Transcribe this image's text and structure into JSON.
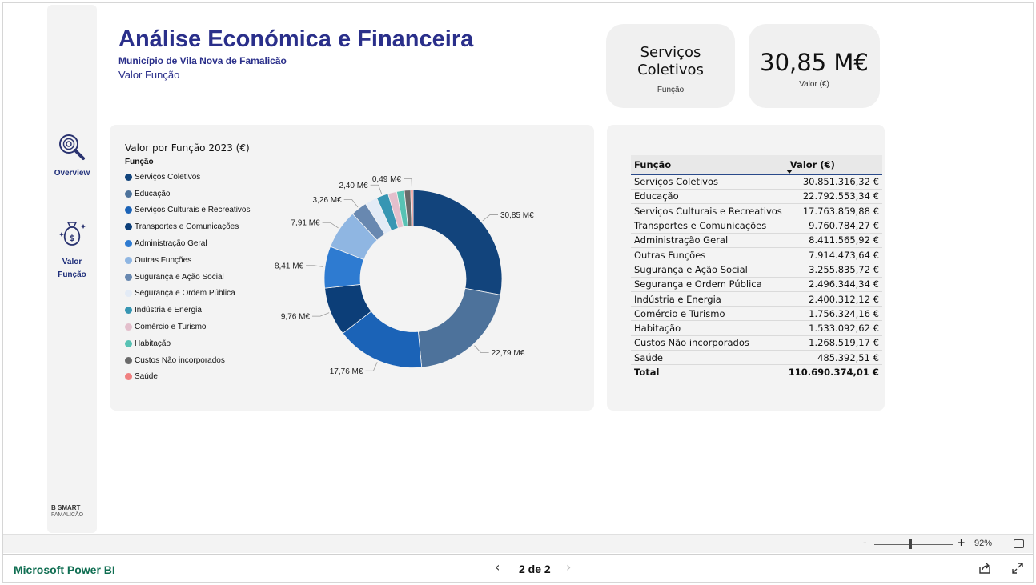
{
  "header": {
    "title": "Análise Económica e Financeira",
    "subtitle": "Município de Vila Nova de Famalicão",
    "page_name": "Valor Função"
  },
  "nav": {
    "items": [
      {
        "label": "Overview",
        "icon": "search-analytics-icon"
      },
      {
        "label_line1": "Valor",
        "label_line2": "Função",
        "icon": "money-bag-icon"
      }
    ],
    "logo_text": "B SMART",
    "logo_sub": "FAMALICÃO"
  },
  "cards": {
    "function": {
      "line1": "Serviços",
      "line2": "Coletivos",
      "caption": "Função"
    },
    "value": {
      "value": "30,85 M€",
      "caption": "Valor (€)"
    }
  },
  "chart_panel": {
    "title": "Valor por Função 2023 (€)",
    "legend_title": "Função"
  },
  "chart_data": {
    "type": "donut",
    "title": "Valor por Função 2023 (€)",
    "legend_title": "Função",
    "legend_position": "left",
    "categories": [
      "Serviços Coletivos",
      "Educação",
      "Serviços Culturais e Recreativos",
      "Transportes e Comunicações",
      "Administração Geral",
      "Outras Funções",
      "Sugurança e Ação Social",
      "Segurança e Ordem Pública",
      "Indústria e Energia",
      "Comércio e Turismo",
      "Habitação",
      "Custos Não incorporados",
      "Saúde"
    ],
    "values": [
      30851316.32,
      22792553.34,
      17763859.88,
      9760784.27,
      8411565.92,
      7914473.64,
      3255835.72,
      2496344.34,
      2400312.12,
      1756324.16,
      1533092.62,
      1268519.17,
      485392.51
    ],
    "colors": [
      "#12447c",
      "#4d729b",
      "#1b63b7",
      "#0c3e78",
      "#2e7bd1",
      "#8fb6e2",
      "#6888b0",
      "#e3ebf6",
      "#3796b3",
      "#e3bfcc",
      "#58c2b4",
      "#6a6a6a",
      "#f08080"
    ],
    "data_labels": [
      "30,85 M€",
      "22,79 M€",
      "17,76 M€",
      "9,76 M€",
      "8,41 M€",
      "7,91 M€",
      "3,26 M€",
      "",
      "2,40 M€",
      "",
      "",
      "",
      "0,49 M€"
    ]
  },
  "table": {
    "col1": "Função",
    "col2": "Valor (€)",
    "rows": [
      {
        "name": "Serviços Coletivos",
        "value": "30.851.316,32 €"
      },
      {
        "name": "Educação",
        "value": "22.792.553,34 €"
      },
      {
        "name": "Serviços Culturais e Recreativos",
        "value": "17.763.859,88 €"
      },
      {
        "name": "Transportes e Comunicações",
        "value": "9.760.784,27 €"
      },
      {
        "name": "Administração Geral",
        "value": "8.411.565,92 €"
      },
      {
        "name": "Outras Funções",
        "value": "7.914.473,64 €"
      },
      {
        "name": "Sugurança e Ação Social",
        "value": "3.255.835,72 €"
      },
      {
        "name": "Segurança e Ordem Pública",
        "value": "2.496.344,34 €"
      },
      {
        "name": "Indústria e Energia",
        "value": "2.400.312,12 €"
      },
      {
        "name": "Comércio e Turismo",
        "value": "1.756.324,16 €"
      },
      {
        "name": "Habitação",
        "value": "1.533.092,62 €"
      },
      {
        "name": "Custos Não incorporados",
        "value": "1.268.519,17 €"
      },
      {
        "name": "Saúde",
        "value": "485.392,51 €"
      }
    ],
    "total_label": "Total",
    "total_value": "110.690.374,01 €"
  },
  "zoom": {
    "minus": "-",
    "plus": "+",
    "percent": "92%"
  },
  "footer": {
    "brand": "Microsoft Power BI",
    "pager": "2 de 2",
    "prev": "‹",
    "next": "›"
  }
}
